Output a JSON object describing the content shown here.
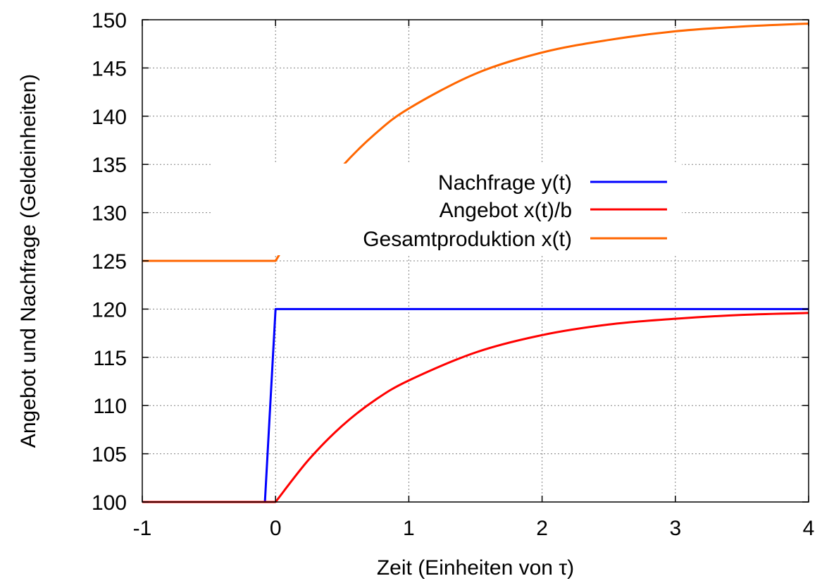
{
  "chart_data": {
    "type": "line",
    "title": "",
    "xlabel": "Zeit (Einheiten von τ)",
    "ylabel": "Angebot und Nachfrage (Geldeinheiten)",
    "xlim": [
      -1,
      4
    ],
    "ylim": [
      100,
      150
    ],
    "xticks": [
      -1,
      0,
      1,
      2,
      3,
      4
    ],
    "yticks": [
      100,
      105,
      110,
      115,
      120,
      125,
      130,
      135,
      140,
      145,
      150
    ],
    "x_tick_labels": [
      "-1",
      "0",
      "1",
      "2",
      "3",
      "4"
    ],
    "y_tick_labels": [
      "100",
      "105",
      "110",
      "115",
      "120",
      "125",
      "130",
      "135",
      "140",
      "145",
      "150"
    ],
    "grid": true,
    "legend_position": "center-right",
    "series": [
      {
        "name": "Nachfrage y(t)",
        "color": "#0000ff",
        "x": [
          -1,
          -0.08,
          0.0,
          4
        ],
        "y": [
          100,
          100,
          120,
          120
        ]
      },
      {
        "name": "Angebot x(t)/b",
        "color": "#ff0000",
        "x": [
          -1,
          0,
          0.25,
          0.5,
          0.75,
          1,
          1.5,
          2,
          2.5,
          3,
          3.5,
          4
        ],
        "y": [
          100,
          100,
          104.4,
          107.9,
          110.6,
          112.6,
          115.5,
          117.3,
          118.4,
          119.0,
          119.4,
          119.6
        ]
      },
      {
        "name": "Gesamtproduktion x(t)",
        "color": "#ff6600",
        "x": [
          -1,
          0,
          0.25,
          0.5,
          0.75,
          1,
          1.5,
          2,
          2.5,
          3,
          3.5,
          4
        ],
        "y": [
          125,
          125,
          130.5,
          134.8,
          138.2,
          140.8,
          144.4,
          146.6,
          147.9,
          148.8,
          149.3,
          149.6
        ]
      }
    ]
  }
}
